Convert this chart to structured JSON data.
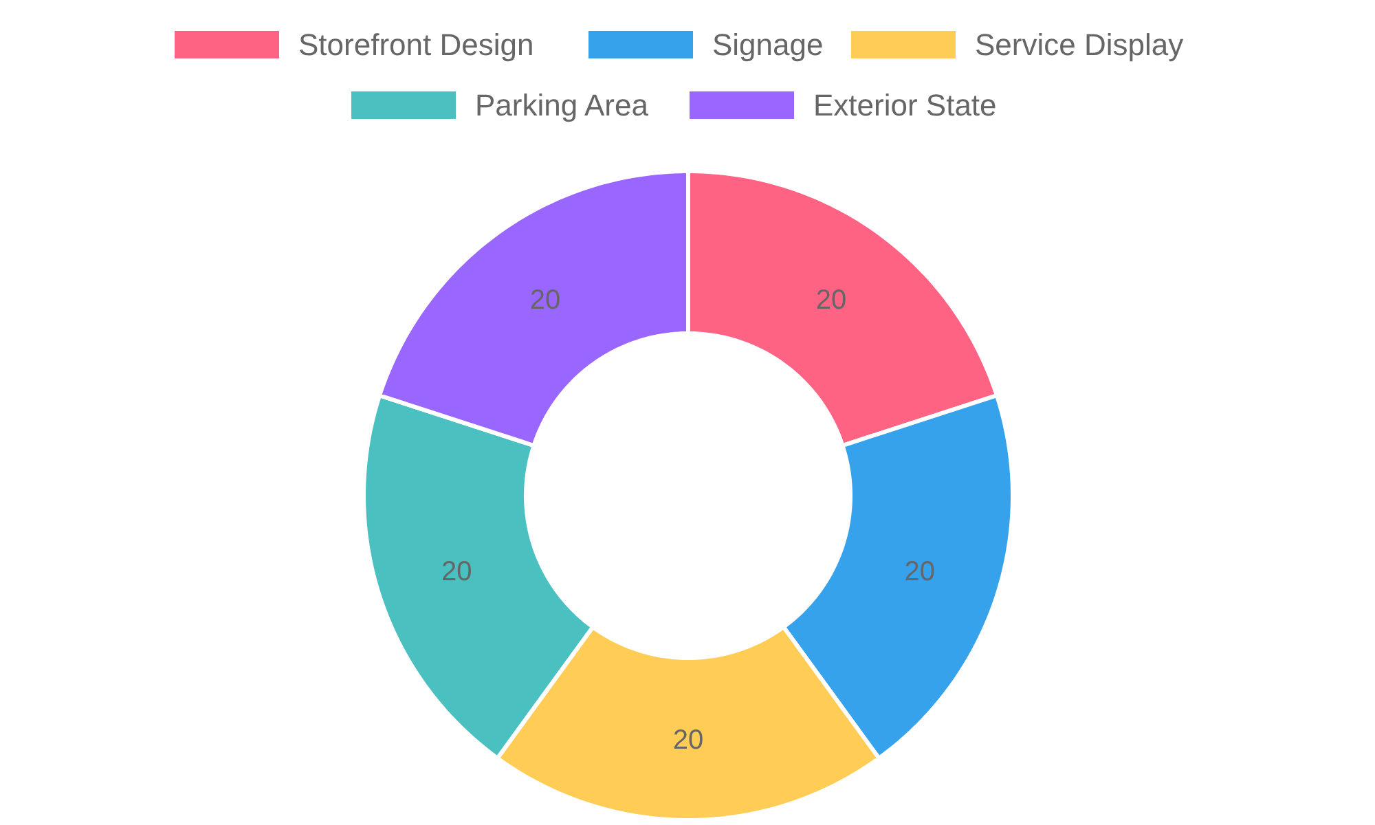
{
  "chart_data": {
    "type": "donut",
    "categories": [
      "Storefront Design",
      "Signage",
      "Service Display",
      "Parking Area",
      "Exterior State"
    ],
    "values": [
      20,
      20,
      20,
      20,
      20
    ],
    "colors": [
      "#ff6384",
      "#36a2eb",
      "#ffcd56",
      "#4bc0c0",
      "#9966ff"
    ],
    "data_labels": true,
    "legend": "top"
  }
}
